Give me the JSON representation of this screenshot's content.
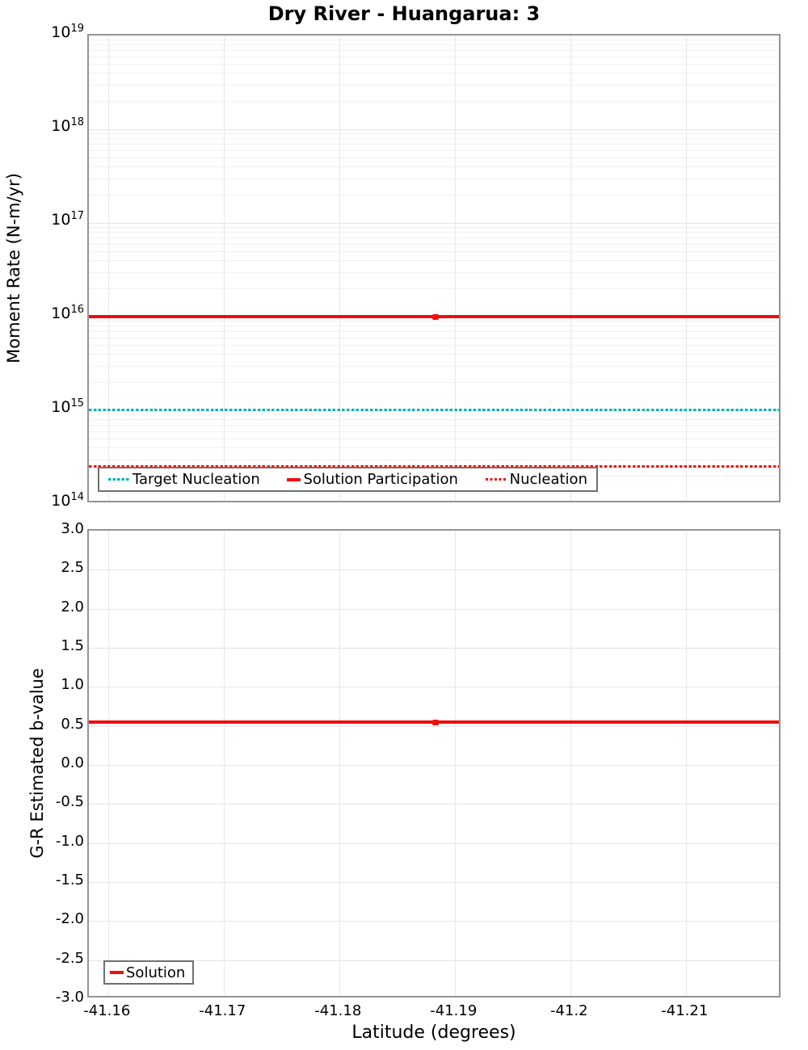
{
  "title": "Dry River - Huangarua: 3",
  "colors": {
    "series_red": "#f20c0c",
    "series_teal": "#00b2b2",
    "grid_major": "#e3e3e3",
    "grid_minor": "#f1f1f1",
    "grid_vert": "#e8e8e8",
    "axis_border": "#949494",
    "legend_border": "#707070"
  },
  "chart_data": [
    {
      "type": "line",
      "title": "Dry River - Huangarua: 3",
      "ylabel": "Moment Rate (N-m/yr)",
      "yscale": "log",
      "ylim": [
        100000000000000.0,
        1e+19
      ],
      "ylim_exponents": [
        14,
        19
      ],
      "ytick_base": "10",
      "ytick_exponents": [
        19,
        18,
        17,
        16,
        15,
        14
      ],
      "xlim": [
        -41.1583,
        -41.2183
      ],
      "xticks": [
        "-41.16",
        "-41.17",
        "-41.18",
        "-41.19",
        "-41.2",
        "-41.21"
      ],
      "grid": true,
      "legend_position": "bottom-center",
      "series": [
        {
          "name": "Target Nucleation",
          "color": "teal",
          "style": "dotted",
          "value": 1000000000000000.0
        },
        {
          "name": "Solution Participation",
          "color": "red",
          "style": "solid",
          "value": 1e+16,
          "marker_x": -41.1883
        },
        {
          "name": "Nucleation",
          "color": "red",
          "style": "dotted",
          "value": 250000000000000.0
        }
      ]
    },
    {
      "type": "line",
      "ylabel": "G-R Estimated b-value",
      "xlabel": "Latitude (degrees)",
      "yscale": "linear",
      "ylim": [
        -3.0,
        3.0
      ],
      "yticks": [
        "3.0",
        "2.5",
        "2.0",
        "1.5",
        "1.0",
        "0.5",
        "0.0",
        "-0.5",
        "-1.0",
        "-1.5",
        "-2.0",
        "-2.5",
        "-3.0"
      ],
      "xlim": [
        -41.1583,
        -41.2183
      ],
      "xticks": [
        "-41.16",
        "-41.17",
        "-41.18",
        "-41.19",
        "-41.2",
        "-41.21"
      ],
      "grid": true,
      "legend_position": "bottom-left",
      "series": [
        {
          "name": "Solution",
          "color": "red",
          "style": "solid",
          "value": 0.55,
          "marker_x": -41.1883
        }
      ]
    }
  ]
}
